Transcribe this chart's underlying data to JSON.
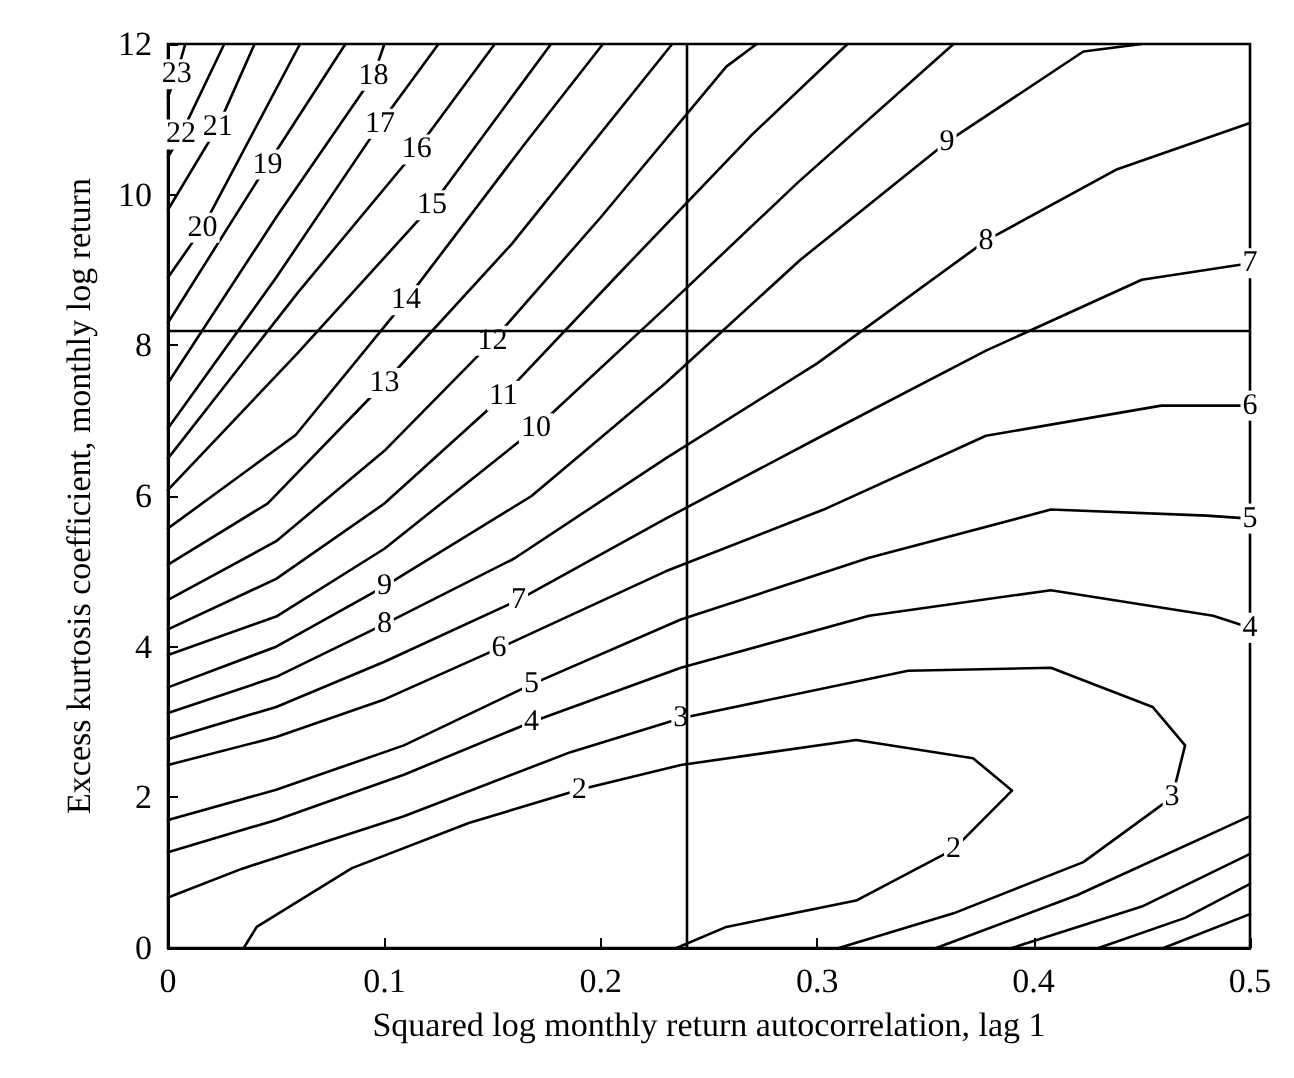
{
  "chart_data": {
    "type": "line",
    "xlabel": "Squared log monthly return autocorrelation, lag 1",
    "ylabel": "Excess kurtosis coefficient, monthly log return",
    "xlim": [
      0,
      0.5
    ],
    "xticks": [
      0,
      0.1,
      0.2,
      0.3,
      0.4,
      0.5
    ],
    "ylim": [
      0,
      12
    ],
    "yticks": [
      0,
      2,
      4,
      6,
      8,
      10,
      12
    ],
    "grid": false,
    "legend": false,
    "marker": "none",
    "line_style": "solid",
    "ref_lines": [
      {
        "axis": "x",
        "value": 0.24,
        "color": "#000000"
      },
      {
        "axis": "y",
        "value": 8.2,
        "color": "#000000"
      }
    ],
    "series": [
      {
        "name": "2",
        "color": "#000000",
        "x": [
          0.035,
          0.041,
          0.085,
          0.139,
          0.19,
          0.237,
          0.318,
          0.372,
          0.39,
          0.363,
          0.318,
          0.258,
          0.235
        ],
        "values": [
          0,
          0.28,
          1.06,
          1.66,
          2.1,
          2.43,
          2.76,
          2.52,
          2.09,
          1.31,
          0.63,
          0.28,
          0
        ]
      },
      {
        "name": "3",
        "color": "#000000",
        "x": [
          0,
          0.034,
          0.109,
          0.186,
          0.237,
          0.342,
          0.408,
          0.455,
          0.47,
          0.464,
          0.423,
          0.363,
          0.31
        ],
        "values": [
          0.67,
          1.05,
          1.75,
          2.6,
          3.05,
          3.68,
          3.72,
          3.2,
          2.69,
          2,
          1.14,
          0.46,
          0
        ]
      },
      {
        "name": "4",
        "color": "#000000",
        "x": [
          0,
          0.05,
          0.109,
          0.168,
          0.237,
          0.324,
          0.408,
          0.483,
          0.5,
          null,
          0.355,
          0.42,
          0.5
        ],
        "values": [
          1.27,
          1.7,
          2.3,
          3,
          3.72,
          4.41,
          4.75,
          4.41,
          4.25,
          null,
          0,
          0.7,
          1.75
        ]
      },
      {
        "name": "5",
        "color": "#000000",
        "x": [
          0,
          0.05,
          0.109,
          0.168,
          0.237,
          0.324,
          0.408,
          0.48,
          0.5,
          null,
          0.39,
          0.45,
          0.5
        ],
        "values": [
          1.7,
          2.1,
          2.69,
          3.5,
          4.36,
          5.18,
          5.82,
          5.74,
          5.7,
          null,
          0,
          0.55,
          1.25
        ]
      },
      {
        "name": "6",
        "color": "#000000",
        "x": [
          0,
          0.05,
          0.1,
          0.153,
          0.23,
          0.303,
          0.378,
          0.459,
          0.5,
          null,
          0.43,
          0.47,
          0.5
        ],
        "values": [
          2.43,
          2.8,
          3.3,
          3.98,
          5,
          5.82,
          6.8,
          7.2,
          7.2,
          null,
          0,
          0.4,
          0.85
        ]
      },
      {
        "name": "7",
        "color": "#000000",
        "x": [
          0,
          0.05,
          0.1,
          0.162,
          0.23,
          0.303,
          0.378,
          0.45,
          0.5,
          null,
          0.46,
          0.5
        ],
        "values": [
          2.77,
          3.2,
          3.8,
          4.62,
          5.7,
          6.81,
          7.93,
          8.87,
          9.09,
          null,
          0,
          0.45
        ]
      },
      {
        "name": "8",
        "color": "#000000",
        "x": [
          0,
          0.05,
          0.1,
          0.16,
          0.23,
          0.3,
          0.378,
          0.438,
          0.5
        ],
        "values": [
          3.12,
          3.6,
          4.3,
          5.17,
          6.5,
          7.76,
          9.39,
          10.33,
          10.95
        ]
      },
      {
        "name": "9",
        "color": "#000000",
        "x": [
          0,
          0.05,
          0.1,
          0.168,
          0.23,
          0.292,
          0.36,
          0.423,
          0.45
        ],
        "values": [
          3.46,
          4,
          4.8,
          6,
          7.5,
          9.13,
          10.7,
          11.9,
          12
        ]
      },
      {
        "name": "10",
        "color": "#000000",
        "x": [
          0,
          0.05,
          0.1,
          0.17,
          0.23,
          0.291,
          0.363
        ],
        "values": [
          3.89,
          4.4,
          5.3,
          6.9,
          8.5,
          10.16,
          12
        ]
      },
      {
        "name": "11",
        "color": "#000000",
        "x": [
          0,
          0.05,
          0.1,
          0.155,
          0.21,
          0.27,
          0.314
        ],
        "values": [
          4.23,
          4.9,
          5.9,
          7.33,
          9,
          10.8,
          12
        ]
      },
      {
        "name": "12",
        "color": "#000000",
        "x": [
          0,
          0.05,
          0.1,
          0.15,
          0.2,
          0.258,
          0.272
        ],
        "values": [
          4.62,
          5.4,
          6.6,
          8.06,
          9.7,
          11.7,
          12
        ]
      },
      {
        "name": "13",
        "color": "#000000",
        "x": [
          0,
          0.046,
          0.1,
          0.159,
          0.233
        ],
        "values": [
          5.09,
          5.9,
          7.5,
          9.35,
          12
        ]
      },
      {
        "name": "14",
        "color": "#000000",
        "x": [
          0,
          0.059,
          0.11,
          0.165,
          0.201
        ],
        "values": [
          5.57,
          6.81,
          8.6,
          10.68,
          12
        ]
      },
      {
        "name": "15",
        "color": "#000000",
        "x": [
          0,
          0.06,
          0.122,
          0.177
        ],
        "values": [
          6.08,
          7.9,
          9.86,
          12
        ]
      },
      {
        "name": "16",
        "color": "#000000",
        "x": [
          0,
          0.06,
          0.115,
          0.151
        ],
        "values": [
          6.5,
          8.7,
          10.6,
          12
        ]
      },
      {
        "name": "17",
        "color": "#000000",
        "x": [
          0,
          0.05,
          0.098,
          0.125
        ],
        "values": [
          6.9,
          8.9,
          10.94,
          12
        ]
      },
      {
        "name": "18",
        "color": "#000000",
        "x": [
          0,
          0.05,
          0.095,
          0.1
        ],
        "values": [
          7.5,
          9.7,
          11.58,
          12
        ]
      },
      {
        "name": "19",
        "color": "#000000",
        "x": [
          0,
          0.046,
          0.082
        ],
        "values": [
          8.3,
          10.4,
          12
        ]
      },
      {
        "name": "20",
        "color": "#000000",
        "x": [
          0,
          0.016,
          0.061
        ],
        "values": [
          8.9,
          9.56,
          12
        ]
      },
      {
        "name": "21",
        "color": "#000000",
        "x": [
          0,
          0.023,
          0.04
        ],
        "values": [
          9.8,
          10.9,
          12
        ]
      },
      {
        "name": "22",
        "color": "#000000",
        "x": [
          0,
          0.006,
          0.026
        ],
        "values": [
          10.5,
          10.8,
          12
        ]
      },
      {
        "name": "23",
        "color": "#000000",
        "x": [
          0,
          0.004,
          0.008
        ],
        "values": [
          11.3,
          11.6,
          12
        ]
      }
    ]
  }
}
